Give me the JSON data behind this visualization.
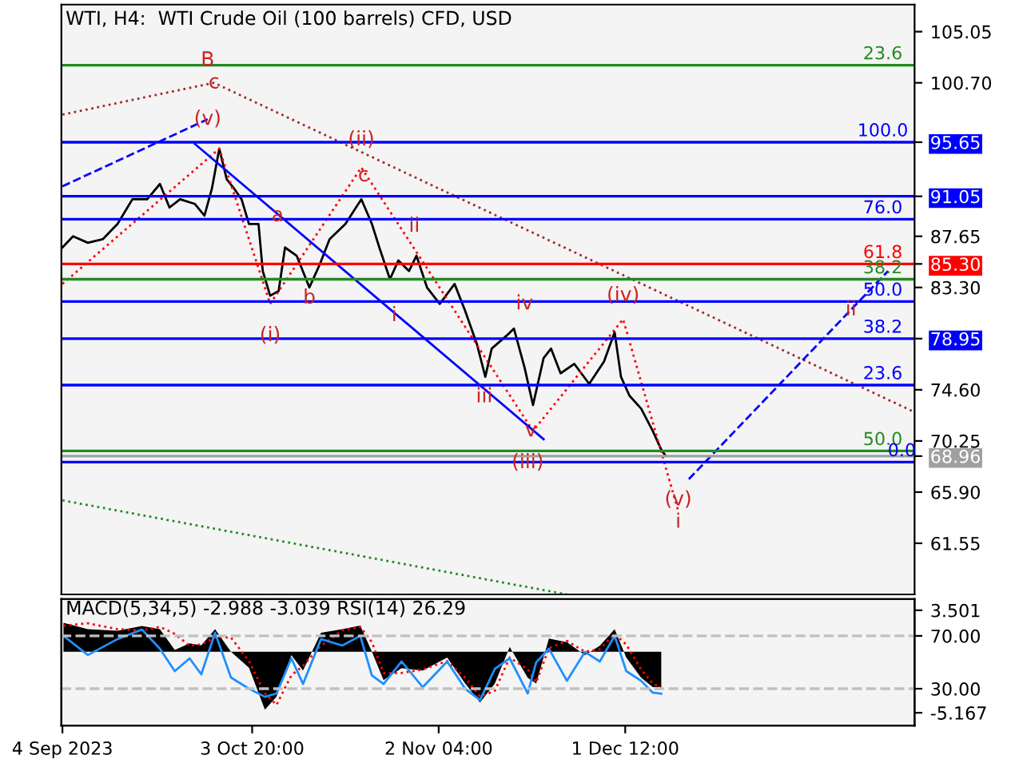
{
  "chart_data": [
    {
      "type": "line",
      "title": "WTI, H4:  WTI Crude Oil (100 barrels) CFD, USD",
      "xlim": [
        "2023-09-03T20:00",
        "2024-01-16T00:00"
      ],
      "ylim": [
        57.2,
        107.35
      ],
      "yticks": [
        105.05,
        {
          "value": 100.7,
          "label": "100.70"
        },
        95.65,
        91.05,
        87.65,
        {
          "value": 85.3,
          "label": "85.30"
        },
        {
          "value": 83.3,
          "label": "83.30"
        },
        78.95,
        {
          "value": 74.6,
          "label": "74.60"
        },
        70.25,
        68.96,
        {
          "value": 65.9,
          "label": "65.90"
        },
        61.55
      ],
      "tick_labels": "y",
      "series": [
        {
          "color": "#000000",
          "x": [
            "2023-09-04T00:00",
            "2023-09-05T16:00",
            "2023-09-08T00:00",
            "2023-09-10T08:00",
            "2023-09-12T16:00",
            "2023-09-15T00:00",
            "2023-09-17T08:00",
            "2023-09-19T08:00",
            "2023-09-20T20:00",
            "2023-09-22T12:00",
            "2023-09-24T20:00",
            "2023-09-26T08:00",
            "2023-09-27T12:00",
            "2023-09-28T16:00",
            "2023-09-29T20:00",
            "2023-10-01T00:00",
            "2023-10-02T04:00",
            "2023-10-03T08:00",
            "2023-10-04T20:00",
            "2023-10-05T12:00",
            "2023-10-06T16:00",
            "2023-10-08T00:00",
            "2023-10-09T00:00",
            "2023-10-10T20:00",
            "2023-10-12T20:00",
            "2023-10-14T12:00",
            "2023-10-16T00:00",
            "2023-10-18T12:00",
            "2023-10-21T00:00",
            "2023-10-22T16:00",
            "2023-10-23T20:00",
            "2023-10-25T12:00",
            "2023-10-26T20:00",
            "2023-10-28T12:00",
            "2023-10-29T16:00",
            "2023-10-31T08:00",
            "2023-11-02T08:00",
            "2023-11-04T16:00",
            "2023-11-06T08:00",
            "2023-11-08T04:00",
            "2023-11-09T12:00",
            "2023-11-10T12:00",
            "2023-11-12T20:00",
            "2023-11-14T00:00",
            "2023-11-15T16:00",
            "2023-11-17T00:00",
            "2023-11-18T16:00",
            "2023-11-19T20:00",
            "2023-11-21T08:00",
            "2023-11-23T12:00",
            "2023-11-25T20:00",
            "2023-11-28T04:00",
            "2023-11-29T20:00",
            "2023-11-30T20:00",
            "2023-12-02T04:00",
            "2023-12-04T00:00",
            "2023-12-05T20:00",
            "2023-12-07T04:00",
            "2023-12-07T20:00"
          ],
          "values": [
            86.7,
            87.65,
            87.1,
            87.4,
            88.7,
            90.8,
            90.8,
            92.1,
            90.1,
            90.8,
            90.4,
            89.4,
            91.7,
            95.1,
            92.5,
            91.7,
            90.8,
            88.7,
            88.7,
            84.7,
            82.6,
            83.0,
            86.7,
            86.0,
            83.3,
            85.3,
            87.4,
            88.7,
            90.8,
            88.7,
            86.7,
            84.0,
            85.6,
            84.7,
            86.0,
            83.3,
            81.9,
            83.6,
            81.3,
            78.5,
            75.7,
            78.1,
            79.2,
            79.8,
            76.5,
            73.3,
            77.3,
            78.1,
            76.0,
            76.8,
            75.1,
            77.0,
            79.5,
            75.7,
            74.1,
            73.0,
            71.1,
            69.5,
            69.0
          ]
        },
        {
          "color": "#a52a2a",
          "line_style": "dotted",
          "x": [
            "2023-09-04T00:00",
            "2023-09-27T20:00",
            "2024-01-16T00:00"
          ],
          "values": [
            98.0,
            100.7,
            72.7
          ]
        },
        {
          "color": "#228b22",
          "line_style": "dotted",
          "x": [
            "2023-09-04T00:00",
            "2023-11-22T08:00"
          ],
          "values": [
            65.2,
            57.2
          ]
        },
        {
          "color": "#0000ff",
          "line_style": "dashed",
          "x": [
            "2023-09-04T00:00",
            "2023-09-26T20:00"
          ],
          "values": [
            91.9,
            97.6
          ]
        },
        {
          "color": "#ff0000",
          "line_style": "dotted",
          "x": [
            "2023-09-04T00:00",
            "2023-09-28T16:00",
            "2023-10-06T16:00",
            "2023-10-21T00:00",
            "2023-11-17T00:00",
            "2023-12-01T04:00",
            "2023-12-09T20:00"
          ],
          "values": [
            83.6,
            95.1,
            81.9,
            93.5,
            71.1,
            80.6,
            64.3
          ]
        },
        {
          "color": "#0000ff",
          "line_style": "dashed",
          "x": [
            "2023-12-11T12:00",
            "2024-01-11T20:00"
          ],
          "values": [
            67.0,
            84.7
          ]
        },
        {
          "color": "#0000ff",
          "line_style": "solid",
          "x": [
            "2023-09-24T20:00",
            "2023-11-18T16:00"
          ],
          "values": [
            95.5,
            70.4
          ]
        }
      ],
      "ref_lines": [
        {
          "axis": "y",
          "value": 102.2,
          "color": "#228b22"
        },
        {
          "axis": "y",
          "value": 95.65,
          "color": "#0000ff"
        },
        {
          "axis": "y",
          "value": 91.05,
          "color": "#0000ff"
        },
        {
          "axis": "y",
          "value": 89.1,
          "color": "#0000ff"
        },
        {
          "axis": "y",
          "value": 85.3,
          "color": "#ff0000"
        },
        {
          "axis": "y",
          "value": 84.0,
          "color": "#228b22"
        },
        {
          "axis": "y",
          "value": 82.1,
          "color": "#0000ff"
        },
        {
          "axis": "y",
          "value": 78.95,
          "color": "#0000ff"
        },
        {
          "axis": "y",
          "value": 75.0,
          "color": "#0000ff"
        },
        {
          "axis": "y",
          "value": 69.4,
          "color": "#228b22"
        },
        {
          "axis": "y",
          "value": 68.45,
          "color": "#0000ff"
        },
        {
          "axis": "y",
          "value": 68.96,
          "color": "#a0a0a0"
        }
      ],
      "annotations": [
        {
          "text": "23.6",
          "x": "2024-01-11T00:00",
          "y": 102.2
        },
        {
          "text": "100.0",
          "x": "2024-01-11T00:00",
          "y": 95.65
        },
        {
          "text": "76.0",
          "x": "2024-01-11T00:00",
          "y": 89.1
        },
        {
          "text": "61.8",
          "x": "2024-01-11T00:00",
          "y": 85.3
        },
        {
          "text": "38.2",
          "x": "2024-01-11T00:00",
          "y": 84.0
        },
        {
          "text": "50.0",
          "x": "2024-01-11T00:00",
          "y": 82.1
        },
        {
          "text": "38.2",
          "x": "2024-01-11T00:00",
          "y": 78.95
        },
        {
          "text": "23.6",
          "x": "2024-01-11T00:00",
          "y": 75.0
        },
        {
          "text": "50.0",
          "x": "2024-01-11T00:00",
          "y": 69.4
        },
        {
          "text": "0.0",
          "x": "2024-01-14T00:00",
          "y": 68.45
        },
        {
          "text": "B",
          "x": "2023-09-26T20:00",
          "y": 102.6
        },
        {
          "text": "c",
          "x": "2023-09-27T20:00",
          "y": 100.7
        },
        {
          "text": "(v)",
          "x": "2023-09-26T20:00",
          "y": 97.6
        },
        {
          "text": "(ii)",
          "x": "2023-10-21T00:00",
          "y": 95.85
        },
        {
          "text": "c",
          "x": "2023-10-21T08:00",
          "y": 92.8
        },
        {
          "text": "a",
          "x": "2023-10-07T20:00",
          "y": 89.4
        },
        {
          "text": "ii",
          "x": "2023-10-29T08:00",
          "y": 88.5
        },
        {
          "text": "(i)",
          "x": "2023-10-06T16:00",
          "y": 79.2
        },
        {
          "text": "b",
          "x": "2023-10-12T20:00",
          "y": 82.4
        },
        {
          "text": "i",
          "x": "2023-10-26T04:00",
          "y": 80.9
        },
        {
          "text": "iv",
          "x": "2023-11-15T16:00",
          "y": 81.9
        },
        {
          "text": "(iv)",
          "x": "2023-12-01T04:00",
          "y": 82.6
        },
        {
          "text": "ii",
          "x": "2024-01-06T00:00",
          "y": 81.4
        },
        {
          "text": "iii",
          "x": "2023-11-09T08:00",
          "y": 74.0
        },
        {
          "text": "v",
          "x": "2023-11-16T16:00",
          "y": 71.1
        },
        {
          "text": "(iii)",
          "x": "2023-11-16T04:00",
          "y": 68.4
        },
        {
          "text": "(v)\ni",
          "x": "2023-12-09T20:00",
          "y": 64.3
        }
      ]
    },
    {
      "type": "area",
      "title": "MACD(5,34,5) -2.988 -3.039 RSI(14) 26.29",
      "x": [
        "2023-09-04T04:00",
        "2023-09-08T00:00",
        "2023-09-12T16:00",
        "2023-09-16T12:00",
        "2023-09-19T08:00",
        "2023-09-21T16:00",
        "2023-09-24T00:00",
        "2023-09-25T20:00",
        "2023-09-28T00:00",
        "2023-09-30T12:00",
        "2023-10-03T08:00",
        "2023-10-05T20:00",
        "2023-10-07T16:00",
        "2023-10-10T00:00",
        "2023-10-11T20:00",
        "2023-10-14T16:00",
        "2023-10-18T00:00",
        "2023-10-20T20:00",
        "2023-10-22T16:00",
        "2023-10-24T12:00",
        "2023-10-27T08:00",
        "2023-10-30T16:00",
        "2023-11-03T12:00",
        "2023-11-06T08:00",
        "2023-11-08T16:00",
        "2023-11-11T00:00",
        "2023-11-13T08:00",
        "2023-11-16T04:00",
        "2023-11-17T12:00",
        "2023-11-19T12:00",
        "2023-11-22T08:00",
        "2023-11-25T04:00",
        "2023-11-27T12:00",
        "2023-11-29T20:00",
        "2023-12-01T16:00",
        "2023-12-04T00:00",
        "2023-12-05T20:00",
        "2023-12-07T04:00"
      ],
      "xlim": [
        "2023-09-03T20:00",
        "2024-01-16T00:00"
      ],
      "xticks": [
        {
          "value": "2023-09-04T00:00",
          "label": "4 Sep 2023"
        },
        {
          "value": "2023-10-03T20:00",
          "label": "3 Oct 20:00"
        },
        {
          "value": "2023-11-02T04:00",
          "label": "2 Nov 04:00"
        },
        {
          "value": "2023-12-01T12:00",
          "label": "1 Dec 12:00"
        }
      ],
      "ylim": [
        -6.25,
        4.45
      ],
      "yticks": [
        3.501,
        -5.167
      ],
      "y2lim": [
        2.1,
        97.9
      ],
      "y2ticks": [
        {
          "value": 70,
          "label": "70.00"
        },
        {
          "value": 30,
          "label": "30.00"
        }
      ],
      "series": [
        {
          "color": "#000000",
          "values": [
            2.44,
            1.9,
            1.76,
            2.17,
            1.9,
            0.14,
            0.7,
            0.54,
            1.9,
            0,
            -1.36,
            -4.9,
            -3.8,
            -0.3,
            -1.6,
            1.6,
            1.9,
            2.2,
            0,
            -2.4,
            -1.4,
            -1.6,
            -0.5,
            -2.7,
            -4.3,
            -2.7,
            0.4,
            -2.2,
            -2.7,
            1.1,
            0.8,
            -0.3,
            0.5,
            1.9,
            -0.5,
            -2.2,
            -3.0,
            -2.988
          ]
        },
        {
          "type": "line",
          "color": "#ff0000",
          "line_style": "dotted",
          "values": [
            2.2,
            2.4,
            1.9,
            1.8,
            2.1,
            1.5,
            0.5,
            0.6,
            1.2,
            1.2,
            -0.8,
            -3.5,
            -4.5,
            -2,
            -1.2,
            0.5,
            1.8,
            2.1,
            0.8,
            -1.8,
            -1.8,
            -1.5,
            -0.8,
            -2.2,
            -3.8,
            -3.3,
            -0.5,
            -1.5,
            -2.6,
            0.3,
            0.9,
            0,
            0.2,
            1.5,
            0.6,
            -1.5,
            -2.7,
            -3.039
          ]
        },
        {
          "type": "line",
          "axis": "y2",
          "color": "#1e90ff",
          "values": [
            70,
            55.5,
            67.6,
            74.8,
            60.3,
            43.3,
            53,
            40.9,
            72.4,
            38.5,
            30,
            23.9,
            26.4,
            53,
            33.6,
            67.6,
            62.7,
            70,
            40,
            33.6,
            50.6,
            31.2,
            50.6,
            30,
            21.5,
            45,
            53,
            26.4,
            50,
            60.3,
            36,
            57.9,
            50.6,
            70,
            43.3,
            36,
            27,
            26.29
          ]
        }
      ],
      "ref_lines": [
        {
          "axis": "y2",
          "value": 70,
          "color": "#c0c0c0",
          "line_style": "dashed"
        },
        {
          "axis": "y2",
          "value": 30,
          "color": "#c0c0c0",
          "line_style": "dashed"
        }
      ]
    }
  ]
}
